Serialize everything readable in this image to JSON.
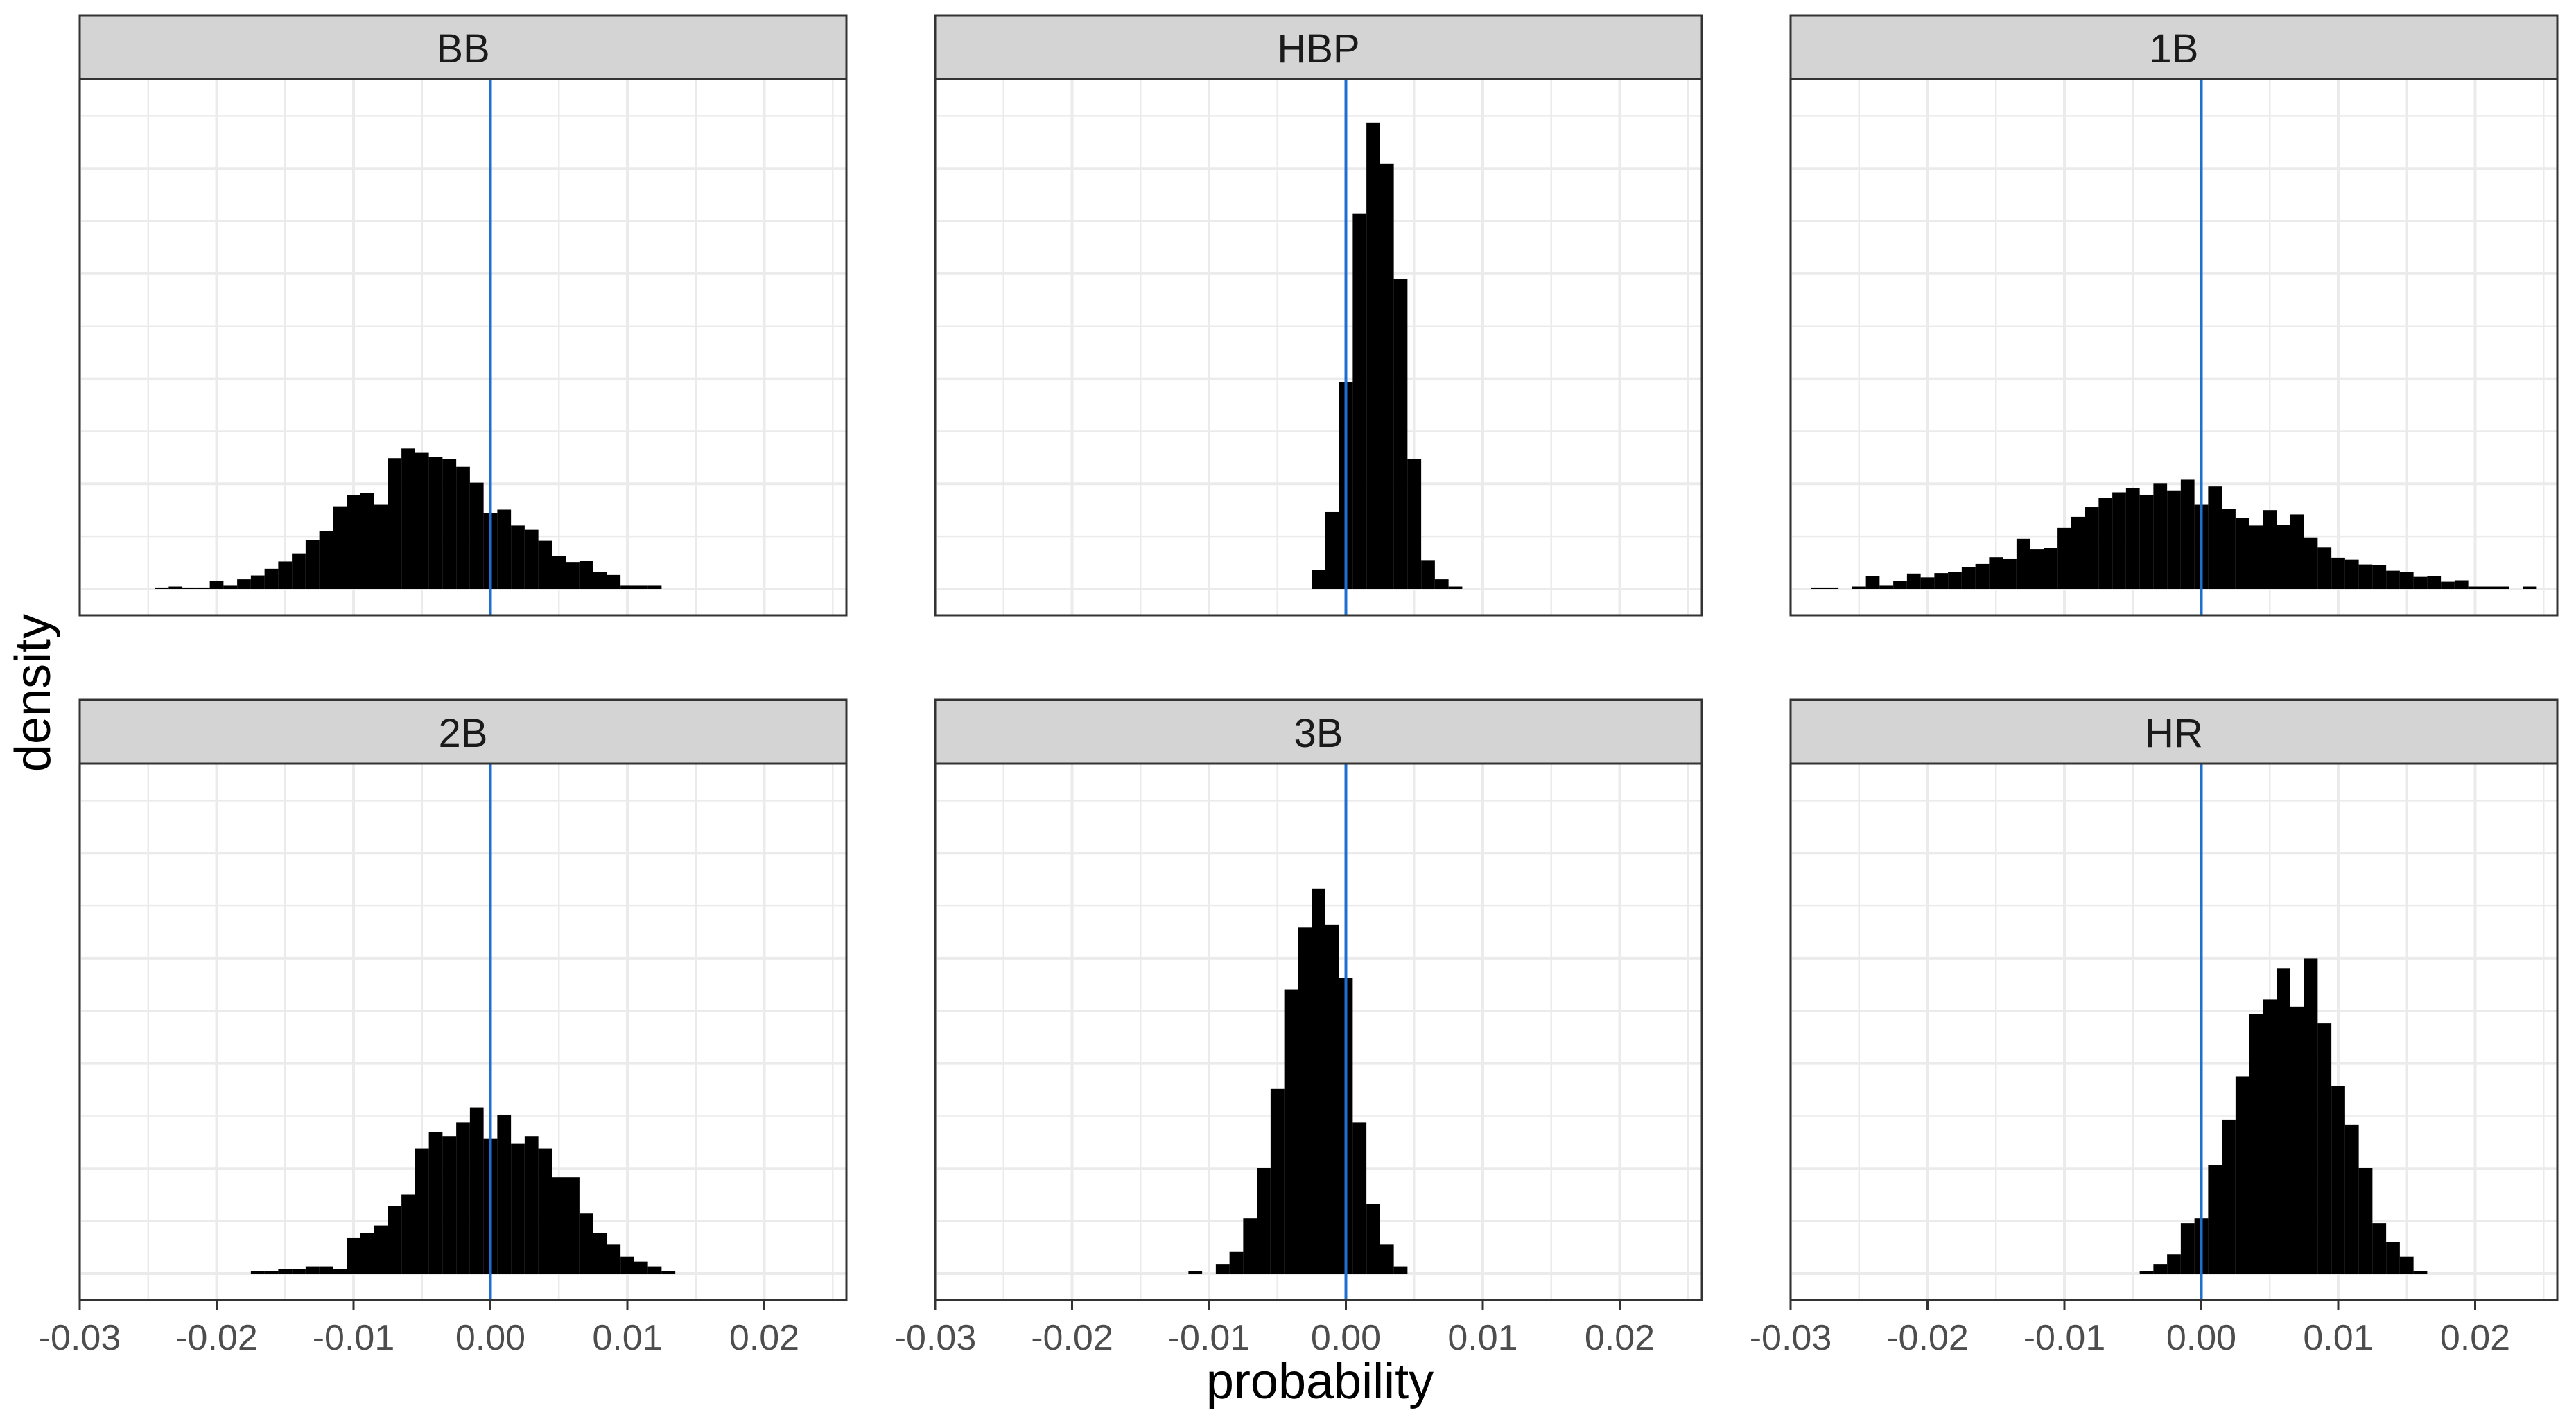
{
  "chart_data": {
    "type": "histogram",
    "xlabel": "probability",
    "ylabel": "density",
    "xlim": [
      -0.03,
      0.026
    ],
    "x_ticks": [
      "-0.03",
      "-0.02",
      "-0.01",
      "0.00",
      "0.01",
      "0.02"
    ],
    "x_tick_values": [
      -0.03,
      -0.02,
      -0.01,
      0.0,
      0.01,
      0.02
    ],
    "y_ticks_shown": false,
    "bin_width": 0.001,
    "reference_line": {
      "x": 0.0,
      "color": "#1f6fd1"
    },
    "bar_color": "#000000",
    "panel_strip_color": "#d4d4d4",
    "grid_color": "#ebebeb",
    "layout": {
      "rows": 2,
      "cols": 3
    },
    "panels": [
      {
        "label": "BB",
        "ymax": 1.0,
        "bins": [
          {
            "x": -0.024,
            "h": 0.003
          },
          {
            "x": -0.023,
            "h": 0.005
          },
          {
            "x": -0.022,
            "h": 0.003
          },
          {
            "x": -0.021,
            "h": 0.003
          },
          {
            "x": -0.02,
            "h": 0.016
          },
          {
            "x": -0.019,
            "h": 0.008
          },
          {
            "x": -0.018,
            "h": 0.02
          },
          {
            "x": -0.017,
            "h": 0.028
          },
          {
            "x": -0.016,
            "h": 0.042
          },
          {
            "x": -0.015,
            "h": 0.057
          },
          {
            "x": -0.014,
            "h": 0.074
          },
          {
            "x": -0.013,
            "h": 0.102
          },
          {
            "x": -0.012,
            "h": 0.12
          },
          {
            "x": -0.011,
            "h": 0.172
          },
          {
            "x": -0.01,
            "h": 0.195
          },
          {
            "x": -0.009,
            "h": 0.2
          },
          {
            "x": -0.008,
            "h": 0.175
          },
          {
            "x": -0.007,
            "h": 0.272
          },
          {
            "x": -0.006,
            "h": 0.292
          },
          {
            "x": -0.005,
            "h": 0.283
          },
          {
            "x": -0.004,
            "h": 0.275
          },
          {
            "x": -0.003,
            "h": 0.27
          },
          {
            "x": -0.002,
            "h": 0.254
          },
          {
            "x": -0.001,
            "h": 0.221
          },
          {
            "x": 0.0,
            "h": 0.158
          },
          {
            "x": 0.001,
            "h": 0.165
          },
          {
            "x": 0.002,
            "h": 0.132
          },
          {
            "x": 0.003,
            "h": 0.123
          },
          {
            "x": 0.004,
            "h": 0.1
          },
          {
            "x": 0.005,
            "h": 0.069
          },
          {
            "x": 0.006,
            "h": 0.056
          },
          {
            "x": 0.007,
            "h": 0.058
          },
          {
            "x": 0.008,
            "h": 0.036
          },
          {
            "x": 0.009,
            "h": 0.029
          },
          {
            "x": 0.01,
            "h": 0.008
          },
          {
            "x": 0.011,
            "h": 0.008
          },
          {
            "x": 0.012,
            "h": 0.008
          }
        ]
      },
      {
        "label": "HBP",
        "ymax": 1.0,
        "bins": [
          {
            "x": -0.002,
            "h": 0.04
          },
          {
            "x": -0.001,
            "h": 0.16
          },
          {
            "x": 0.0,
            "h": 0.43
          },
          {
            "x": 0.001,
            "h": 0.78
          },
          {
            "x": 0.002,
            "h": 0.97
          },
          {
            "x": 0.003,
            "h": 0.885
          },
          {
            "x": 0.004,
            "h": 0.645
          },
          {
            "x": 0.005,
            "h": 0.27
          },
          {
            "x": 0.006,
            "h": 0.06
          },
          {
            "x": 0.007,
            "h": 0.02
          },
          {
            "x": 0.008,
            "h": 0.005
          }
        ]
      },
      {
        "label": "1B",
        "ymax": 1.0,
        "bins": [
          {
            "x": -0.028,
            "h": 0.003
          },
          {
            "x": -0.027,
            "h": 0.003
          },
          {
            "x": -0.025,
            "h": 0.005
          },
          {
            "x": -0.024,
            "h": 0.026
          },
          {
            "x": -0.023,
            "h": 0.008
          },
          {
            "x": -0.022,
            "h": 0.016
          },
          {
            "x": -0.021,
            "h": 0.032
          },
          {
            "x": -0.02,
            "h": 0.024
          },
          {
            "x": -0.019,
            "h": 0.033
          },
          {
            "x": -0.018,
            "h": 0.036
          },
          {
            "x": -0.017,
            "h": 0.046
          },
          {
            "x": -0.016,
            "h": 0.052
          },
          {
            "x": -0.015,
            "h": 0.066
          },
          {
            "x": -0.014,
            "h": 0.062
          },
          {
            "x": -0.013,
            "h": 0.104
          },
          {
            "x": -0.012,
            "h": 0.082
          },
          {
            "x": -0.011,
            "h": 0.085
          },
          {
            "x": -0.01,
            "h": 0.127
          },
          {
            "x": -0.009,
            "h": 0.15
          },
          {
            "x": -0.008,
            "h": 0.17
          },
          {
            "x": -0.007,
            "h": 0.19
          },
          {
            "x": -0.006,
            "h": 0.201
          },
          {
            "x": -0.005,
            "h": 0.21
          },
          {
            "x": -0.004,
            "h": 0.196
          },
          {
            "x": -0.003,
            "h": 0.22
          },
          {
            "x": -0.002,
            "h": 0.205
          },
          {
            "x": -0.001,
            "h": 0.227
          },
          {
            "x": 0.0,
            "h": 0.175
          },
          {
            "x": 0.001,
            "h": 0.213
          },
          {
            "x": 0.002,
            "h": 0.166
          },
          {
            "x": 0.003,
            "h": 0.147
          },
          {
            "x": 0.004,
            "h": 0.132
          },
          {
            "x": 0.005,
            "h": 0.164
          },
          {
            "x": 0.006,
            "h": 0.134
          },
          {
            "x": 0.007,
            "h": 0.155
          },
          {
            "x": 0.008,
            "h": 0.107
          },
          {
            "x": 0.009,
            "h": 0.086
          },
          {
            "x": 0.01,
            "h": 0.065
          },
          {
            "x": 0.011,
            "h": 0.061
          },
          {
            "x": 0.012,
            "h": 0.051
          },
          {
            "x": 0.013,
            "h": 0.05
          },
          {
            "x": 0.014,
            "h": 0.038
          },
          {
            "x": 0.015,
            "h": 0.036
          },
          {
            "x": 0.016,
            "h": 0.025
          },
          {
            "x": 0.017,
            "h": 0.026
          },
          {
            "x": 0.018,
            "h": 0.015
          },
          {
            "x": 0.019,
            "h": 0.018
          },
          {
            "x": 0.02,
            "h": 0.005
          },
          {
            "x": 0.021,
            "h": 0.005
          },
          {
            "x": 0.022,
            "h": 0.005
          },
          {
            "x": 0.024,
            "h": 0.005
          }
        ]
      },
      {
        "label": "2B",
        "ymax": 1.0,
        "bins": [
          {
            "x": -0.017,
            "h": 0.005
          },
          {
            "x": -0.016,
            "h": 0.005
          },
          {
            "x": -0.015,
            "h": 0.01
          },
          {
            "x": -0.014,
            "h": 0.01
          },
          {
            "x": -0.013,
            "h": 0.015
          },
          {
            "x": -0.012,
            "h": 0.015
          },
          {
            "x": -0.011,
            "h": 0.01
          },
          {
            "x": -0.01,
            "h": 0.075
          },
          {
            "x": -0.009,
            "h": 0.085
          },
          {
            "x": -0.008,
            "h": 0.1
          },
          {
            "x": -0.007,
            "h": 0.14
          },
          {
            "x": -0.006,
            "h": 0.165
          },
          {
            "x": -0.005,
            "h": 0.26
          },
          {
            "x": -0.004,
            "h": 0.295
          },
          {
            "x": -0.003,
            "h": 0.285
          },
          {
            "x": -0.002,
            "h": 0.315
          },
          {
            "x": -0.001,
            "h": 0.345
          },
          {
            "x": 0.0,
            "h": 0.28
          },
          {
            "x": 0.001,
            "h": 0.33
          },
          {
            "x": 0.002,
            "h": 0.27
          },
          {
            "x": 0.003,
            "h": 0.285
          },
          {
            "x": 0.004,
            "h": 0.26
          },
          {
            "x": 0.005,
            "h": 0.2
          },
          {
            "x": 0.006,
            "h": 0.2
          },
          {
            "x": 0.007,
            "h": 0.125
          },
          {
            "x": 0.008,
            "h": 0.085
          },
          {
            "x": 0.009,
            "h": 0.06
          },
          {
            "x": 0.01,
            "h": 0.035
          },
          {
            "x": 0.011,
            "h": 0.025
          },
          {
            "x": 0.012,
            "h": 0.015
          },
          {
            "x": 0.013,
            "h": 0.005
          }
        ]
      },
      {
        "label": "3B",
        "ymax": 1.0,
        "bins": [
          {
            "x": -0.011,
            "h": 0.005
          },
          {
            "x": -0.009,
            "h": 0.02
          },
          {
            "x": -0.008,
            "h": 0.045
          },
          {
            "x": -0.007,
            "h": 0.115
          },
          {
            "x": -0.006,
            "h": 0.22
          },
          {
            "x": -0.005,
            "h": 0.385
          },
          {
            "x": -0.004,
            "h": 0.59
          },
          {
            "x": -0.003,
            "h": 0.72
          },
          {
            "x": -0.002,
            "h": 0.8
          },
          {
            "x": -0.001,
            "h": 0.725
          },
          {
            "x": 0.0,
            "h": 0.615
          },
          {
            "x": 0.001,
            "h": 0.315
          },
          {
            "x": 0.002,
            "h": 0.145
          },
          {
            "x": 0.003,
            "h": 0.06
          },
          {
            "x": 0.004,
            "h": 0.015
          }
        ]
      },
      {
        "label": "HR",
        "ymax": 1.0,
        "bins": [
          {
            "x": -0.004,
            "h": 0.005
          },
          {
            "x": -0.003,
            "h": 0.02
          },
          {
            "x": -0.002,
            "h": 0.04
          },
          {
            "x": -0.001,
            "h": 0.105
          },
          {
            "x": 0.0,
            "h": 0.115
          },
          {
            "x": 0.001,
            "h": 0.225
          },
          {
            "x": 0.002,
            "h": 0.32
          },
          {
            "x": 0.003,
            "h": 0.41
          },
          {
            "x": 0.004,
            "h": 0.54
          },
          {
            "x": 0.005,
            "h": 0.57
          },
          {
            "x": 0.006,
            "h": 0.635
          },
          {
            "x": 0.007,
            "h": 0.555
          },
          {
            "x": 0.008,
            "h": 0.655
          },
          {
            "x": 0.009,
            "h": 0.52
          },
          {
            "x": 0.01,
            "h": 0.39
          },
          {
            "x": 0.011,
            "h": 0.31
          },
          {
            "x": 0.012,
            "h": 0.22
          },
          {
            "x": 0.013,
            "h": 0.105
          },
          {
            "x": 0.014,
            "h": 0.065
          },
          {
            "x": 0.015,
            "h": 0.035
          },
          {
            "x": 0.016,
            "h": 0.005
          }
        ]
      }
    ]
  }
}
